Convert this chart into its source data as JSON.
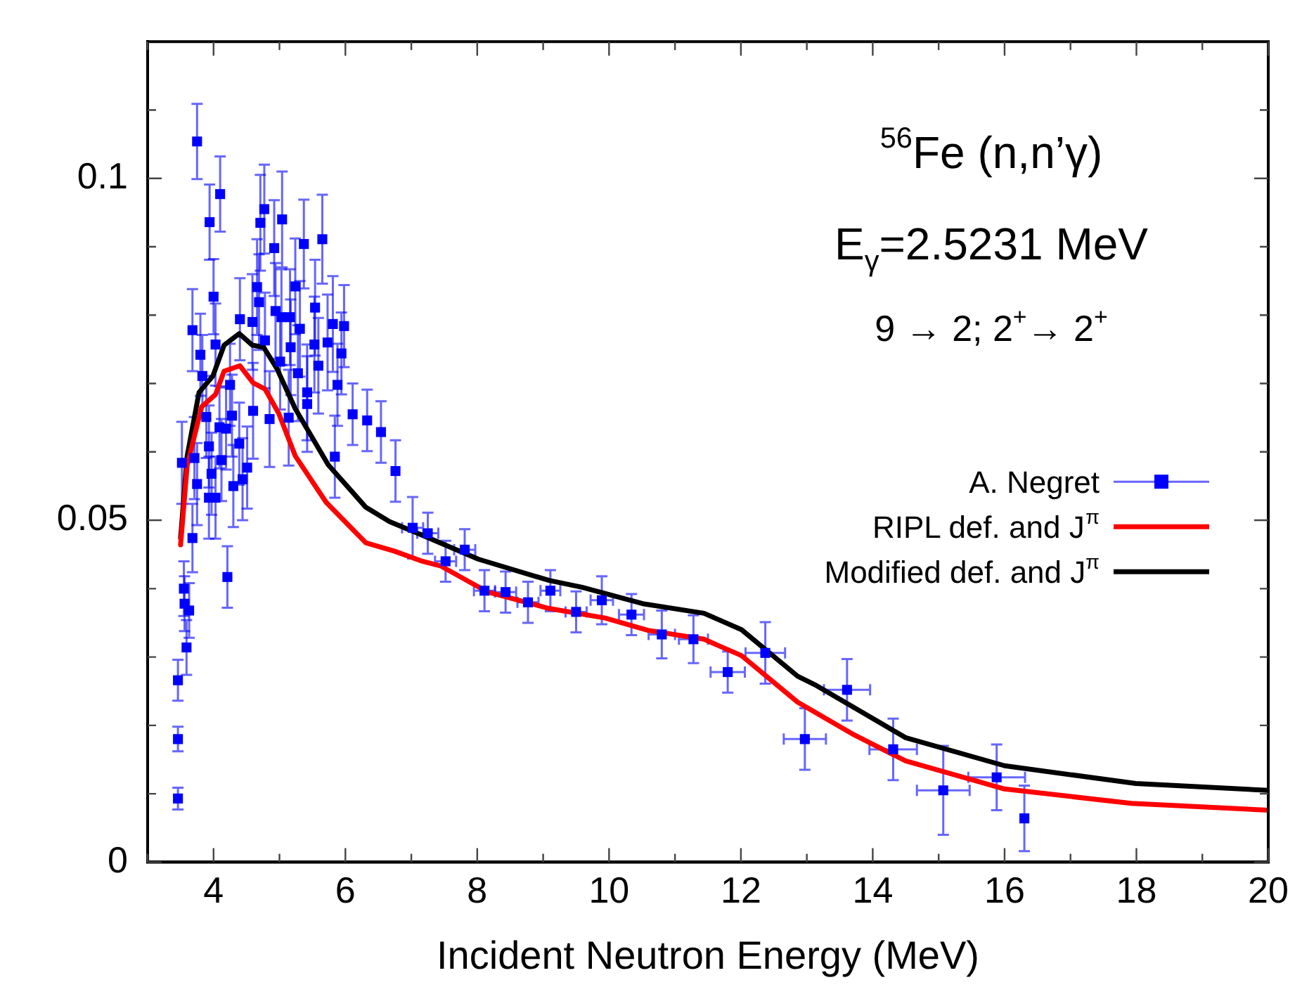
{
  "chart_data": {
    "type": "scatter",
    "xlabel": "Incident Neutron Energy (MeV)",
    "annotations": [
      "$^{56}$Fe (n,n’γ)",
      "E$_{γ}$=2.5231 MeV",
      "9 → 2; 2$^{+}$→ 2$^{+}$"
    ],
    "xlim": [
      3,
      20
    ],
    "xticks": [
      {
        "value": 3,
        "label": null
      },
      4,
      {
        "value": 5,
        "label": null
      },
      6,
      {
        "value": 7,
        "label": null
      },
      8,
      {
        "value": 9,
        "label": null
      },
      10,
      {
        "value": 11,
        "label": null
      },
      12,
      {
        "value": 13,
        "label": null
      },
      14,
      {
        "value": 15,
        "label": null
      },
      16,
      {
        "value": 17,
        "label": null
      },
      18,
      {
        "value": 19,
        "label": null
      },
      20
    ],
    "ylim": [
      0,
      0.12
    ],
    "yticks": [
      0,
      {
        "value": 0.01,
        "label": null
      },
      {
        "value": 0.02,
        "label": null
      },
      {
        "value": 0.03,
        "label": null
      },
      {
        "value": 0.04,
        "label": null
      },
      0.05,
      {
        "value": 0.06,
        "label": null
      },
      {
        "value": 0.07,
        "label": null
      },
      {
        "value": 0.08,
        "label": null
      },
      {
        "value": 0.09,
        "label": null
      },
      0.1,
      {
        "value": 0.11,
        "label": null
      }
    ],
    "grid": false,
    "legend": "right",
    "series": [
      {
        "name": "A. Negret",
        "type": "scatter",
        "marker": "square",
        "color": "#0000ff",
        "x": [
          3.46,
          3.46,
          3.46,
          3.52,
          3.55,
          3.56,
          3.59,
          3.63,
          3.68,
          3.68,
          3.71,
          3.75,
          3.75,
          3.8,
          3.83,
          3.89,
          3.93,
          3.93,
          3.94,
          3.97,
          4.0,
          4.03,
          4.03,
          4.09,
          4.1,
          4.12,
          4.19,
          4.21,
          4.25,
          4.28,
          4.3,
          4.39,
          4.4,
          4.44,
          4.51,
          4.59,
          4.6,
          4.66,
          4.69,
          4.71,
          4.77,
          4.78,
          4.85,
          4.92,
          4.94,
          5.01,
          5.03,
          5.04,
          5.14,
          5.16,
          5.17,
          5.24,
          5.28,
          5.31,
          5.37,
          5.42,
          5.42,
          5.53,
          5.54,
          5.59,
          5.65,
          5.73,
          5.81,
          5.84,
          5.88,
          5.94,
          5.98,
          6.11,
          6.33,
          6.54,
          6.76,
          7.02,
          7.25,
          7.52,
          7.81,
          8.11,
          8.43,
          8.77,
          9.11,
          9.5,
          9.89,
          10.34,
          10.8,
          11.28,
          11.8,
          12.37,
          12.97,
          13.61,
          14.31,
          15.07,
          15.88,
          16.3
        ],
        "values": [
          0.0093,
          0.018,
          0.0266,
          0.0584,
          0.04,
          0.0378,
          0.0314,
          0.0368,
          0.0778,
          0.0474,
          0.0591,
          0.1054,
          0.0553,
          0.0742,
          0.0711,
          0.0651,
          0.0608,
          0.0533,
          0.0936,
          0.0568,
          0.0827,
          0.0757,
          0.0533,
          0.0636,
          0.0977,
          0.0588,
          0.0634,
          0.0417,
          0.0698,
          0.0653,
          0.055,
          0.0612,
          0.0794,
          0.056,
          0.0577,
          0.079,
          0.066,
          0.0841,
          0.0819,
          0.0935,
          0.0955,
          0.0763,
          0.0648,
          0.0898,
          0.0806,
          0.0732,
          0.0797,
          0.094,
          0.065,
          0.0797,
          0.0753,
          0.0842,
          0.0715,
          0.078,
          0.0904,
          0.0687,
          0.067,
          0.0757,
          0.0811,
          0.0726,
          0.0911,
          0.076,
          0.0787,
          0.0593,
          0.0698,
          0.0744,
          0.0784,
          0.0655,
          0.0646,
          0.0629,
          0.0572,
          0.0489,
          0.0481,
          0.044,
          0.0457,
          0.0397,
          0.0395,
          0.038,
          0.0397,
          0.0366,
          0.0383,
          0.0362,
          0.0333,
          0.0326,
          0.0278,
          0.0306,
          0.018,
          0.0252,
          0.0165,
          0.0105,
          0.0124,
          0.0064
        ],
        "errors": [
          0.0016,
          0.0018,
          0.003,
          0.006,
          0.004,
          0.004,
          0.004,
          0.004,
          0.006,
          0.005,
          0.006,
          0.0055,
          0.006,
          0.006,
          0.006,
          0.006,
          0.006,
          0.006,
          0.0055,
          0.006,
          0.0055,
          0.006,
          0.006,
          0.006,
          0.0055,
          0.006,
          0.006,
          0.0045,
          0.006,
          0.006,
          0.006,
          0.006,
          0.006,
          0.006,
          0.006,
          0.007,
          0.007,
          0.007,
          0.007,
          0.007,
          0.0065,
          0.007,
          0.007,
          0.007,
          0.007,
          0.007,
          0.007,
          0.007,
          0.007,
          0.007,
          0.007,
          0.007,
          0.007,
          0.007,
          0.0065,
          0.007,
          0.007,
          0.007,
          0.007,
          0.007,
          0.0065,
          0.007,
          0.007,
          0.006,
          0.006,
          0.006,
          0.006,
          0.0045,
          0.0045,
          0.0045,
          0.0045,
          0.0045,
          0.003,
          0.003,
          0.003,
          0.003,
          0.003,
          0.003,
          0.003,
          0.003,
          0.0035,
          0.003,
          0.0035,
          0.0035,
          0.003,
          0.0045,
          0.0045,
          0.0045,
          0.0045,
          0.0065,
          0.0048,
          0.0048
        ],
        "xerrors": [
          null,
          null,
          null,
          null,
          null,
          null,
          null,
          null,
          null,
          null,
          null,
          null,
          null,
          null,
          null,
          null,
          null,
          null,
          null,
          null,
          null,
          null,
          null,
          null,
          null,
          null,
          null,
          null,
          null,
          null,
          null,
          null,
          null,
          null,
          null,
          null,
          null,
          null,
          null,
          null,
          null,
          null,
          null,
          null,
          null,
          null,
          null,
          null,
          null,
          null,
          null,
          null,
          null,
          null,
          null,
          null,
          null,
          null,
          null,
          null,
          null,
          null,
          null,
          null,
          null,
          null,
          null,
          null,
          null,
          null,
          null,
          0.16,
          0.16,
          0.16,
          0.16,
          0.16,
          0.16,
          0.16,
          0.15,
          0.16,
          0.17,
          0.19,
          0.2,
          0.22,
          0.26,
          0.3,
          0.32,
          0.35,
          0.36,
          0.4,
          0.43,
          null
        ]
      },
      {
        "name": "RIPL def. and J$^{π}$",
        "type": "line",
        "marker": "none",
        "line_style": "solid",
        "color": "#ff0000",
        "x": [
          3.5,
          3.6,
          3.82,
          4.03,
          4.16,
          4.4,
          4.6,
          4.78,
          4.99,
          5.24,
          5.71,
          6.31,
          6.74,
          7.17,
          7.45,
          8.16,
          9.09,
          9.94,
          10.59,
          11.44,
          12.01,
          12.86,
          13.72,
          14.5,
          16.0,
          17.92,
          20
        ],
        "values": [
          0.0464,
          0.058,
          0.0666,
          0.0684,
          0.0718,
          0.0726,
          0.0701,
          0.0692,
          0.0656,
          0.0594,
          0.0526,
          0.0467,
          0.0455,
          0.044,
          0.0433,
          0.0395,
          0.0371,
          0.0357,
          0.0339,
          0.0326,
          0.0302,
          0.0234,
          0.0186,
          0.0148,
          0.0107,
          0.0086,
          0.0076
        ]
      },
      {
        "name": "Modified def. and J$^{π}$",
        "type": "line",
        "marker": "none",
        "line_style": "solid",
        "color": "#000000",
        "x": [
          3.5,
          3.6,
          3.78,
          3.99,
          4.16,
          4.39,
          4.59,
          4.76,
          4.96,
          5.24,
          5.74,
          6.31,
          6.67,
          7.17,
          8.02,
          9.09,
          9.59,
          10.51,
          11.44,
          12.01,
          12.86,
          13.15,
          14.5,
          16.0,
          17.99,
          20
        ],
        "values": [
          0.0474,
          0.0594,
          0.0687,
          0.0711,
          0.0756,
          0.0773,
          0.0756,
          0.0753,
          0.0722,
          0.0663,
          0.0581,
          0.0519,
          0.0498,
          0.0478,
          0.0443,
          0.0412,
          0.0402,
          0.0378,
          0.0364,
          0.034,
          0.0272,
          0.0258,
          0.0182,
          0.0141,
          0.0115,
          0.0105
        ]
      }
    ]
  }
}
